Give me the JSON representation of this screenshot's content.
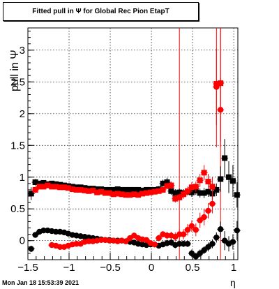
{
  "timestamp": "Mon Jan 18 15:53:39 2021",
  "chart_data": {
    "type": "scatter",
    "title": "Fitted pull in  Ψ  for Global Rec Pion EtapT",
    "xlabel": "η",
    "ylabel": "pull in  Ψ",
    "xlim": [
      -1.5,
      1.05
    ],
    "ylim": [
      -0.3,
      3.35
    ],
    "grid": true,
    "x_ticks": [
      -1.5,
      -1,
      -0.5,
      0,
      0.5,
      1
    ],
    "x_tick_labels": [
      "−1.5",
      "−1",
      "−0.5",
      "0",
      "0.5",
      "1"
    ],
    "y_ticks": [
      0,
      0.5,
      1,
      1.5,
      2,
      2.5,
      3
    ],
    "y_tick_labels": [
      "0",
      "0.5",
      "1",
      "1.5",
      "2",
      "2.5",
      "3"
    ],
    "colors": {
      "black": "#000000",
      "red": "#ff0000"
    },
    "series": [
      {
        "marker": "square",
        "color": "#000000",
        "x": [
          -1.46,
          -1.41,
          -1.36,
          -1.31,
          -1.26,
          -1.21,
          -1.16,
          -1.11,
          -1.06,
          -1.01,
          -0.96,
          -0.91,
          -0.86,
          -0.81,
          -0.76,
          -0.71,
          -0.66,
          -0.61,
          -0.56,
          -0.51,
          -0.46,
          -0.41,
          -0.36,
          -0.31,
          -0.26,
          -0.21,
          -0.16,
          -0.11,
          -0.06,
          -0.01,
          0.04,
          0.09,
          0.14,
          0.19,
          0.24,
          0.29,
          0.34,
          0.39,
          0.44,
          0.49,
          0.54,
          0.59,
          0.64,
          0.69,
          0.74,
          0.79,
          0.84,
          0.89,
          0.94,
          0.99,
          1.04
        ],
        "y": [
          0.74,
          0.92,
          0.9,
          0.91,
          0.89,
          0.9,
          0.89,
          0.88,
          0.87,
          0.86,
          0.85,
          0.84,
          0.84,
          0.83,
          0.82,
          0.82,
          0.81,
          0.81,
          0.8,
          0.8,
          0.8,
          0.81,
          0.8,
          0.8,
          0.8,
          0.8,
          0.8,
          0.79,
          0.8,
          0.8,
          0.8,
          0.81,
          0.9,
          0.92,
          0.78,
          0.75,
          0.76,
          0.75,
          0.77,
          0.76,
          0.79,
          0.75,
          0.75,
          0.77,
          0.74,
          0.8,
          0.97,
          1.3,
          1.0,
          0.94,
          0.72
        ],
        "err": [
          0.1,
          0.05,
          0.04,
          0.04,
          0.04,
          0.04,
          0.04,
          0.04,
          0.04,
          0.04,
          0.03,
          0.03,
          0.03,
          0.03,
          0.03,
          0.03,
          0.03,
          0.03,
          0.03,
          0.03,
          0.03,
          0.03,
          0.03,
          0.03,
          0.03,
          0.03,
          0.03,
          0.03,
          0.03,
          0.03,
          0.04,
          0.05,
          0.06,
          0.07,
          0.06,
          0.06,
          0.06,
          0.06,
          0.06,
          0.07,
          0.07,
          0.07,
          0.08,
          0.08,
          0.09,
          0.1,
          0.2,
          0.3,
          0.25,
          0.25,
          0.2
        ]
      },
      {
        "marker": "circle",
        "color": "#000000",
        "x": [
          -1.46,
          -1.41,
          -1.36,
          -1.31,
          -1.26,
          -1.21,
          -1.16,
          -1.11,
          -1.06,
          -1.01,
          -0.96,
          -0.91,
          -0.86,
          -0.81,
          -0.76,
          -0.71,
          -0.66,
          -0.61,
          -0.56,
          -0.51,
          -0.46,
          -0.41,
          -0.36,
          -0.31,
          -0.26,
          -0.21,
          -0.16,
          -0.11,
          -0.06,
          -0.01,
          0.04,
          0.09,
          0.14,
          0.19,
          0.24,
          0.29,
          0.34,
          0.39,
          0.44,
          0.49,
          0.54,
          0.59,
          0.64,
          0.69,
          0.74,
          0.79,
          0.84,
          0.89,
          0.94,
          0.99,
          1.04
        ],
        "y": [
          -0.13,
          0.09,
          0.14,
          0.16,
          0.16,
          0.15,
          0.14,
          0.14,
          0.13,
          0.11,
          0.09,
          0.08,
          0.07,
          0.06,
          0.05,
          0.04,
          0.03,
          0.02,
          0.01,
          0.01,
          0.0,
          0.0,
          0.0,
          -0.01,
          -0.02,
          -0.03,
          -0.05,
          -0.06,
          -0.07,
          -0.06,
          -0.06,
          -0.08,
          -0.06,
          -0.04,
          -0.03,
          -0.07,
          -0.05,
          -0.05,
          -0.05,
          -0.2,
          -0.25,
          -0.2,
          -0.15,
          -0.1,
          -0.05,
          0.05,
          0.18,
          0.0,
          -0.05,
          -0.02,
          0.16
        ],
        "err": [
          0.05,
          0.04,
          0.03,
          0.03,
          0.03,
          0.03,
          0.03,
          0.03,
          0.03,
          0.03,
          0.03,
          0.03,
          0.03,
          0.03,
          0.03,
          0.03,
          0.03,
          0.03,
          0.03,
          0.03,
          0.03,
          0.03,
          0.03,
          0.03,
          0.03,
          0.03,
          0.03,
          0.03,
          0.03,
          0.03,
          0.03,
          0.04,
          0.04,
          0.05,
          0.05,
          0.05,
          0.05,
          0.05,
          0.05,
          0.06,
          0.06,
          0.06,
          0.06,
          0.07,
          0.07,
          0.08,
          0.12,
          0.15,
          0.12,
          0.12,
          0.15
        ]
      },
      {
        "marker": "square",
        "color": "#ff0000",
        "x": [
          -1.41,
          -1.36,
          -1.31,
          -1.26,
          -1.21,
          -1.16,
          -1.11,
          -1.06,
          -1.01,
          -0.96,
          -0.91,
          -0.86,
          -0.81,
          -0.76,
          -0.71,
          -0.66,
          -0.61,
          -0.56,
          -0.51,
          -0.46,
          -0.41,
          -0.36,
          -0.31,
          -0.26,
          -0.21,
          -0.16,
          -0.11,
          -0.06,
          -0.01,
          0.04,
          0.09,
          0.14,
          0.19,
          0.24,
          0.29,
          0.34,
          0.39,
          0.44,
          0.49,
          0.54,
          0.59,
          0.64,
          0.69,
          0.74,
          0.79,
          0.84
        ],
        "y": [
          0.8,
          0.85,
          0.85,
          0.87,
          0.85,
          0.85,
          0.84,
          0.84,
          0.83,
          0.81,
          0.8,
          0.8,
          0.79,
          0.78,
          0.79,
          0.76,
          0.77,
          0.75,
          0.75,
          0.73,
          0.74,
          0.73,
          0.72,
          0.72,
          0.73,
          0.72,
          0.74,
          0.75,
          0.76,
          0.77,
          0.78,
          0.8,
          0.86,
          0.87,
          0.66,
          0.68,
          0.73,
          0.78,
          0.84,
          0.85,
          0.95,
          1.07,
          0.93,
          0.85,
          2.47,
          2.48
        ],
        "err": [
          0.05,
          0.04,
          0.04,
          0.04,
          0.04,
          0.04,
          0.04,
          0.04,
          0.04,
          0.04,
          0.03,
          0.03,
          0.03,
          0.03,
          0.03,
          0.03,
          0.03,
          0.03,
          0.03,
          0.03,
          0.03,
          0.03,
          0.03,
          0.03,
          0.03,
          0.03,
          0.03,
          0.03,
          0.03,
          0.04,
          0.04,
          0.05,
          0.05,
          0.06,
          0.06,
          0.06,
          0.07,
          0.07,
          0.08,
          0.08,
          0.1,
          0.12,
          0.12,
          0.15,
          1.0,
          1.0
        ]
      },
      {
        "marker": "circle",
        "color": "#ff0000",
        "x": [
          -1.21,
          -1.16,
          -1.11,
          -1.06,
          -1.01,
          -0.96,
          -0.91,
          -0.86,
          -0.81,
          -0.76,
          -0.71,
          -0.66,
          -0.61,
          -0.56,
          -0.51,
          -0.46,
          -0.41,
          -0.36,
          -0.31,
          -0.26,
          -0.21,
          -0.16,
          -0.11,
          -0.06,
          -0.01,
          0.04,
          0.09,
          0.14,
          0.19,
          0.24,
          0.29,
          0.34,
          0.39,
          0.44,
          0.49,
          0.54,
          0.59,
          0.64,
          0.69,
          0.74,
          0.79,
          0.84
        ],
        "y": [
          -0.07,
          -0.08,
          -0.1,
          -0.1,
          -0.08,
          -0.06,
          -0.05,
          -0.05,
          -0.02,
          -0.01,
          -0.01,
          0.0,
          0.01,
          0.01,
          0.0,
          0.0,
          -0.01,
          0.0,
          -0.01,
          0.04,
          0.08,
          0.04,
          0.02,
          0.01,
          -0.04,
          -0.06,
          0.04,
          0.1,
          0.08,
          0.08,
          0.06,
          0.1,
          0.1,
          0.17,
          0.23,
          0.17,
          0.32,
          0.37,
          0.47,
          0.58,
          2.42,
          2.06
        ],
        "err": [
          0.04,
          0.04,
          0.04,
          0.04,
          0.04,
          0.04,
          0.03,
          0.03,
          0.03,
          0.03,
          0.03,
          0.03,
          0.03,
          0.03,
          0.03,
          0.03,
          0.03,
          0.03,
          0.03,
          0.03,
          0.04,
          0.04,
          0.04,
          0.04,
          0.04,
          0.04,
          0.05,
          0.05,
          0.06,
          0.06,
          0.07,
          0.08,
          0.08,
          0.09,
          0.09,
          0.1,
          0.12,
          0.13,
          0.12,
          0.15,
          0.6,
          0.5
        ]
      }
    ],
    "vertical_lines": [
      {
        "x": 0.34,
        "color": "#ff0000"
      },
      {
        "x": 0.84,
        "color": "#ff0000"
      }
    ]
  }
}
